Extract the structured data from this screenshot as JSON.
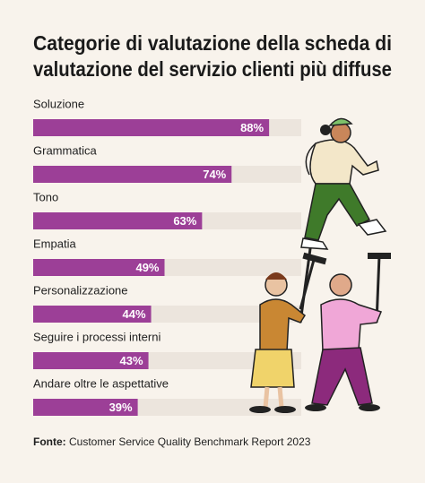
{
  "chart_data": {
    "type": "bar",
    "orientation": "horizontal",
    "title": [
      "Categorie di valutazione della scheda di",
      "valutazione del servizio clienti più diffuse"
    ],
    "categories": [
      "Soluzione",
      "Grammatica",
      "Tono",
      "Empatia",
      "Personalizzazione",
      "Seguire i processi interni",
      "Andare oltre le aspettative"
    ],
    "values": [
      88,
      74,
      63,
      49,
      44,
      43,
      39
    ],
    "value_labels": [
      "88%",
      "74%",
      "63%",
      "49%",
      "44%",
      "43%",
      "39%"
    ],
    "color": "#9c3f97",
    "xlim": [
      0,
      100
    ],
    "source_label": "Fonte:",
    "source": "Customer Service Quality Benchmark Report 2023"
  }
}
